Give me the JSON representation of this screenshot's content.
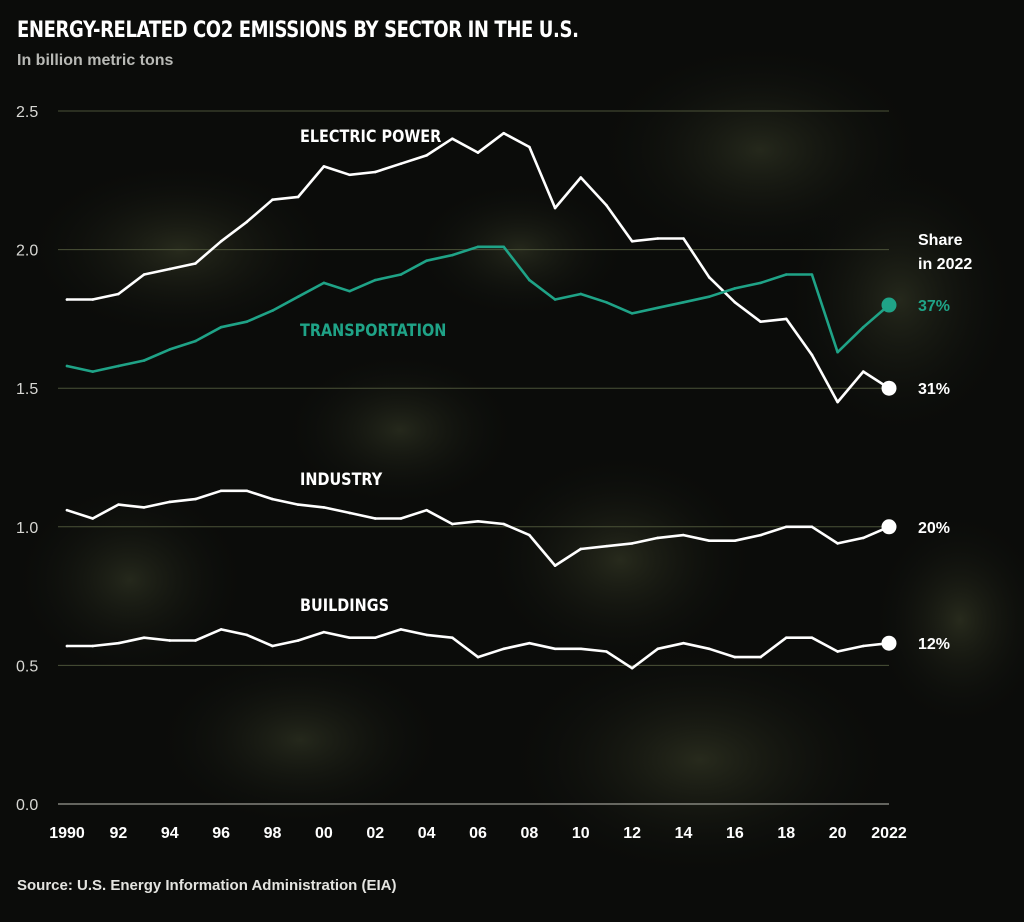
{
  "title": "ENERGY-RELATED CO2 EMISSIONS BY SECTOR IN THE U.S.",
  "subtitle": "In billion metric tons",
  "source": "Source: U.S. Energy Information Administration (EIA)",
  "share_header": [
    "Share",
    "in 2022"
  ],
  "colors": {
    "background": "#0b0c0a",
    "white_series": "#ffffff",
    "transportation": "#1fa387",
    "grid": "#4b5238",
    "tick_text": "#d8d8d4"
  },
  "chart_data": {
    "type": "line",
    "title": "ENERGY-RELATED CO2 EMISSIONS BY SECTOR IN THE U.S.",
    "subtitle": "In billion metric tons",
    "xlabel": "",
    "ylabel": "",
    "ylim": [
      0,
      2.5
    ],
    "yticks": [
      0.0,
      0.5,
      1.0,
      1.5,
      2.0,
      2.5
    ],
    "ytick_labels": [
      "0.0",
      "0.5",
      "1.0",
      "1.5",
      "2.0",
      "2.5"
    ],
    "xlim": [
      1990,
      2022
    ],
    "xticks": [
      1990,
      1992,
      1994,
      1996,
      1998,
      2000,
      2002,
      2004,
      2006,
      2008,
      2010,
      2012,
      2014,
      2016,
      2018,
      2020,
      2022
    ],
    "xtick_labels": [
      "1990",
      "92",
      "94",
      "96",
      "98",
      "00",
      "02",
      "04",
      "06",
      "08",
      "10",
      "12",
      "14",
      "16",
      "18",
      "20",
      "2022"
    ],
    "grid": true,
    "x": [
      1990,
      1991,
      1992,
      1993,
      1994,
      1995,
      1996,
      1997,
      1998,
      1999,
      2000,
      2001,
      2002,
      2003,
      2004,
      2005,
      2006,
      2007,
      2008,
      2009,
      2010,
      2011,
      2012,
      2013,
      2014,
      2015,
      2016,
      2017,
      2018,
      2019,
      2020,
      2021,
      2022
    ],
    "series": [
      {
        "name": "ELECTRIC POWER",
        "color": "#ffffff",
        "share_2022": "31%",
        "values": [
          1.82,
          1.82,
          1.84,
          1.91,
          1.93,
          1.95,
          2.03,
          2.1,
          2.18,
          2.19,
          2.3,
          2.27,
          2.28,
          2.31,
          2.34,
          2.4,
          2.35,
          2.42,
          2.37,
          2.15,
          2.26,
          2.16,
          2.03,
          2.04,
          2.04,
          1.9,
          1.81,
          1.74,
          1.75,
          1.62,
          1.45,
          1.56,
          1.5
        ]
      },
      {
        "name": "TRANSPORTATION",
        "color": "#1fa387",
        "share_2022": "37%",
        "values": [
          1.58,
          1.56,
          1.58,
          1.6,
          1.64,
          1.67,
          1.72,
          1.74,
          1.78,
          1.83,
          1.88,
          1.85,
          1.89,
          1.91,
          1.96,
          1.98,
          2.01,
          2.01,
          1.89,
          1.82,
          1.84,
          1.81,
          1.77,
          1.79,
          1.81,
          1.83,
          1.86,
          1.88,
          1.91,
          1.91,
          1.63,
          1.72,
          1.8
        ]
      },
      {
        "name": "INDUSTRY",
        "color": "#ffffff",
        "share_2022": "20%",
        "values": [
          1.06,
          1.03,
          1.08,
          1.07,
          1.09,
          1.1,
          1.13,
          1.13,
          1.1,
          1.08,
          1.07,
          1.05,
          1.03,
          1.03,
          1.06,
          1.01,
          1.02,
          1.01,
          0.97,
          0.86,
          0.92,
          0.93,
          0.94,
          0.96,
          0.97,
          0.95,
          0.95,
          0.97,
          1.0,
          1.0,
          0.94,
          0.96,
          1.0
        ]
      },
      {
        "name": "BUILDINGS",
        "color": "#ffffff",
        "share_2022": "12%",
        "values": [
          0.57,
          0.57,
          0.58,
          0.6,
          0.59,
          0.59,
          0.63,
          0.61,
          0.57,
          0.59,
          0.62,
          0.6,
          0.6,
          0.63,
          0.61,
          0.6,
          0.53,
          0.56,
          0.58,
          0.56,
          0.56,
          0.55,
          0.49,
          0.56,
          0.58,
          0.56,
          0.53,
          0.53,
          0.6,
          0.6,
          0.55,
          0.57,
          0.58
        ]
      }
    ]
  }
}
